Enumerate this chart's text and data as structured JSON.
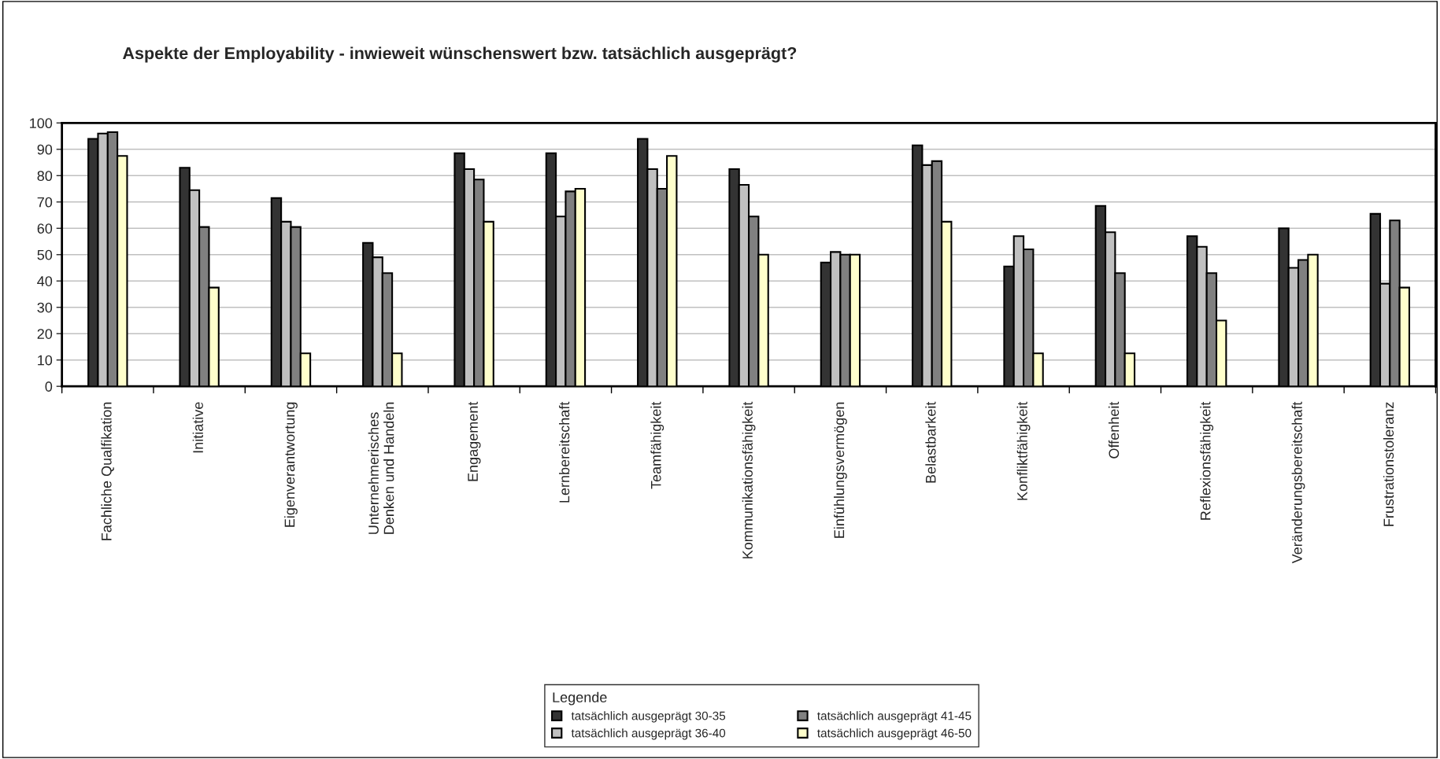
{
  "chart_data": {
    "type": "bar",
    "title": "Aspekte der Employability - inwieweit wünschenswert bzw. tatsächlich ausgeprägt?",
    "categories": [
      "Fachliche Qualfikation",
      "Initiative",
      "Eigenverantwortung",
      "Unternehmerisches\nDenken und Handeln",
      "Engagement",
      "Lernbereitschaft",
      "Teamfähigkeit",
      "Kommunikationsfähigkeit",
      "Einfühlungsvermögen",
      "Belastbarkeit",
      "Konfliktfähigkeit",
      "Offenheit",
      "Reflexionsfähigkeit",
      "Veränderungsbereitschaft",
      "Frustrationstoleranz"
    ],
    "series": [
      {
        "name": "tatsächlich ausgeprägt 30-35",
        "color": "#333333",
        "values": [
          94,
          83,
          71.5,
          54.5,
          88.5,
          88.5,
          94,
          82.5,
          47,
          91.5,
          45.5,
          68.5,
          57,
          60,
          65.5
        ]
      },
      {
        "name": "tatsächlich ausgeprägt 36-40",
        "color": "#c0c0c0",
        "values": [
          96,
          74.5,
          62.5,
          49,
          82.5,
          64.5,
          82.5,
          76.5,
          51,
          84,
          57,
          58.5,
          53,
          45,
          39
        ]
      },
      {
        "name": "tatsächlich ausgeprägt 41-45",
        "color": "#808080",
        "values": [
          96.5,
          60.5,
          60.5,
          43,
          78.5,
          74,
          75,
          64.5,
          50,
          85.5,
          52,
          43,
          43,
          48,
          63
        ]
      },
      {
        "name": "tatsächlich ausgeprägt 46-50",
        "color": "#ffffcc",
        "values": [
          87.5,
          37.5,
          12.5,
          12.5,
          62.5,
          75,
          87.5,
          50,
          50,
          62.5,
          12.5,
          12.5,
          25,
          50,
          37.5
        ]
      }
    ],
    "ylim": [
      0,
      100
    ],
    "yticks": [
      0,
      10,
      20,
      30,
      40,
      50,
      60,
      70,
      80,
      90,
      100
    ],
    "grid": "y",
    "legend": "bottom",
    "legend_title": "Legende"
  }
}
